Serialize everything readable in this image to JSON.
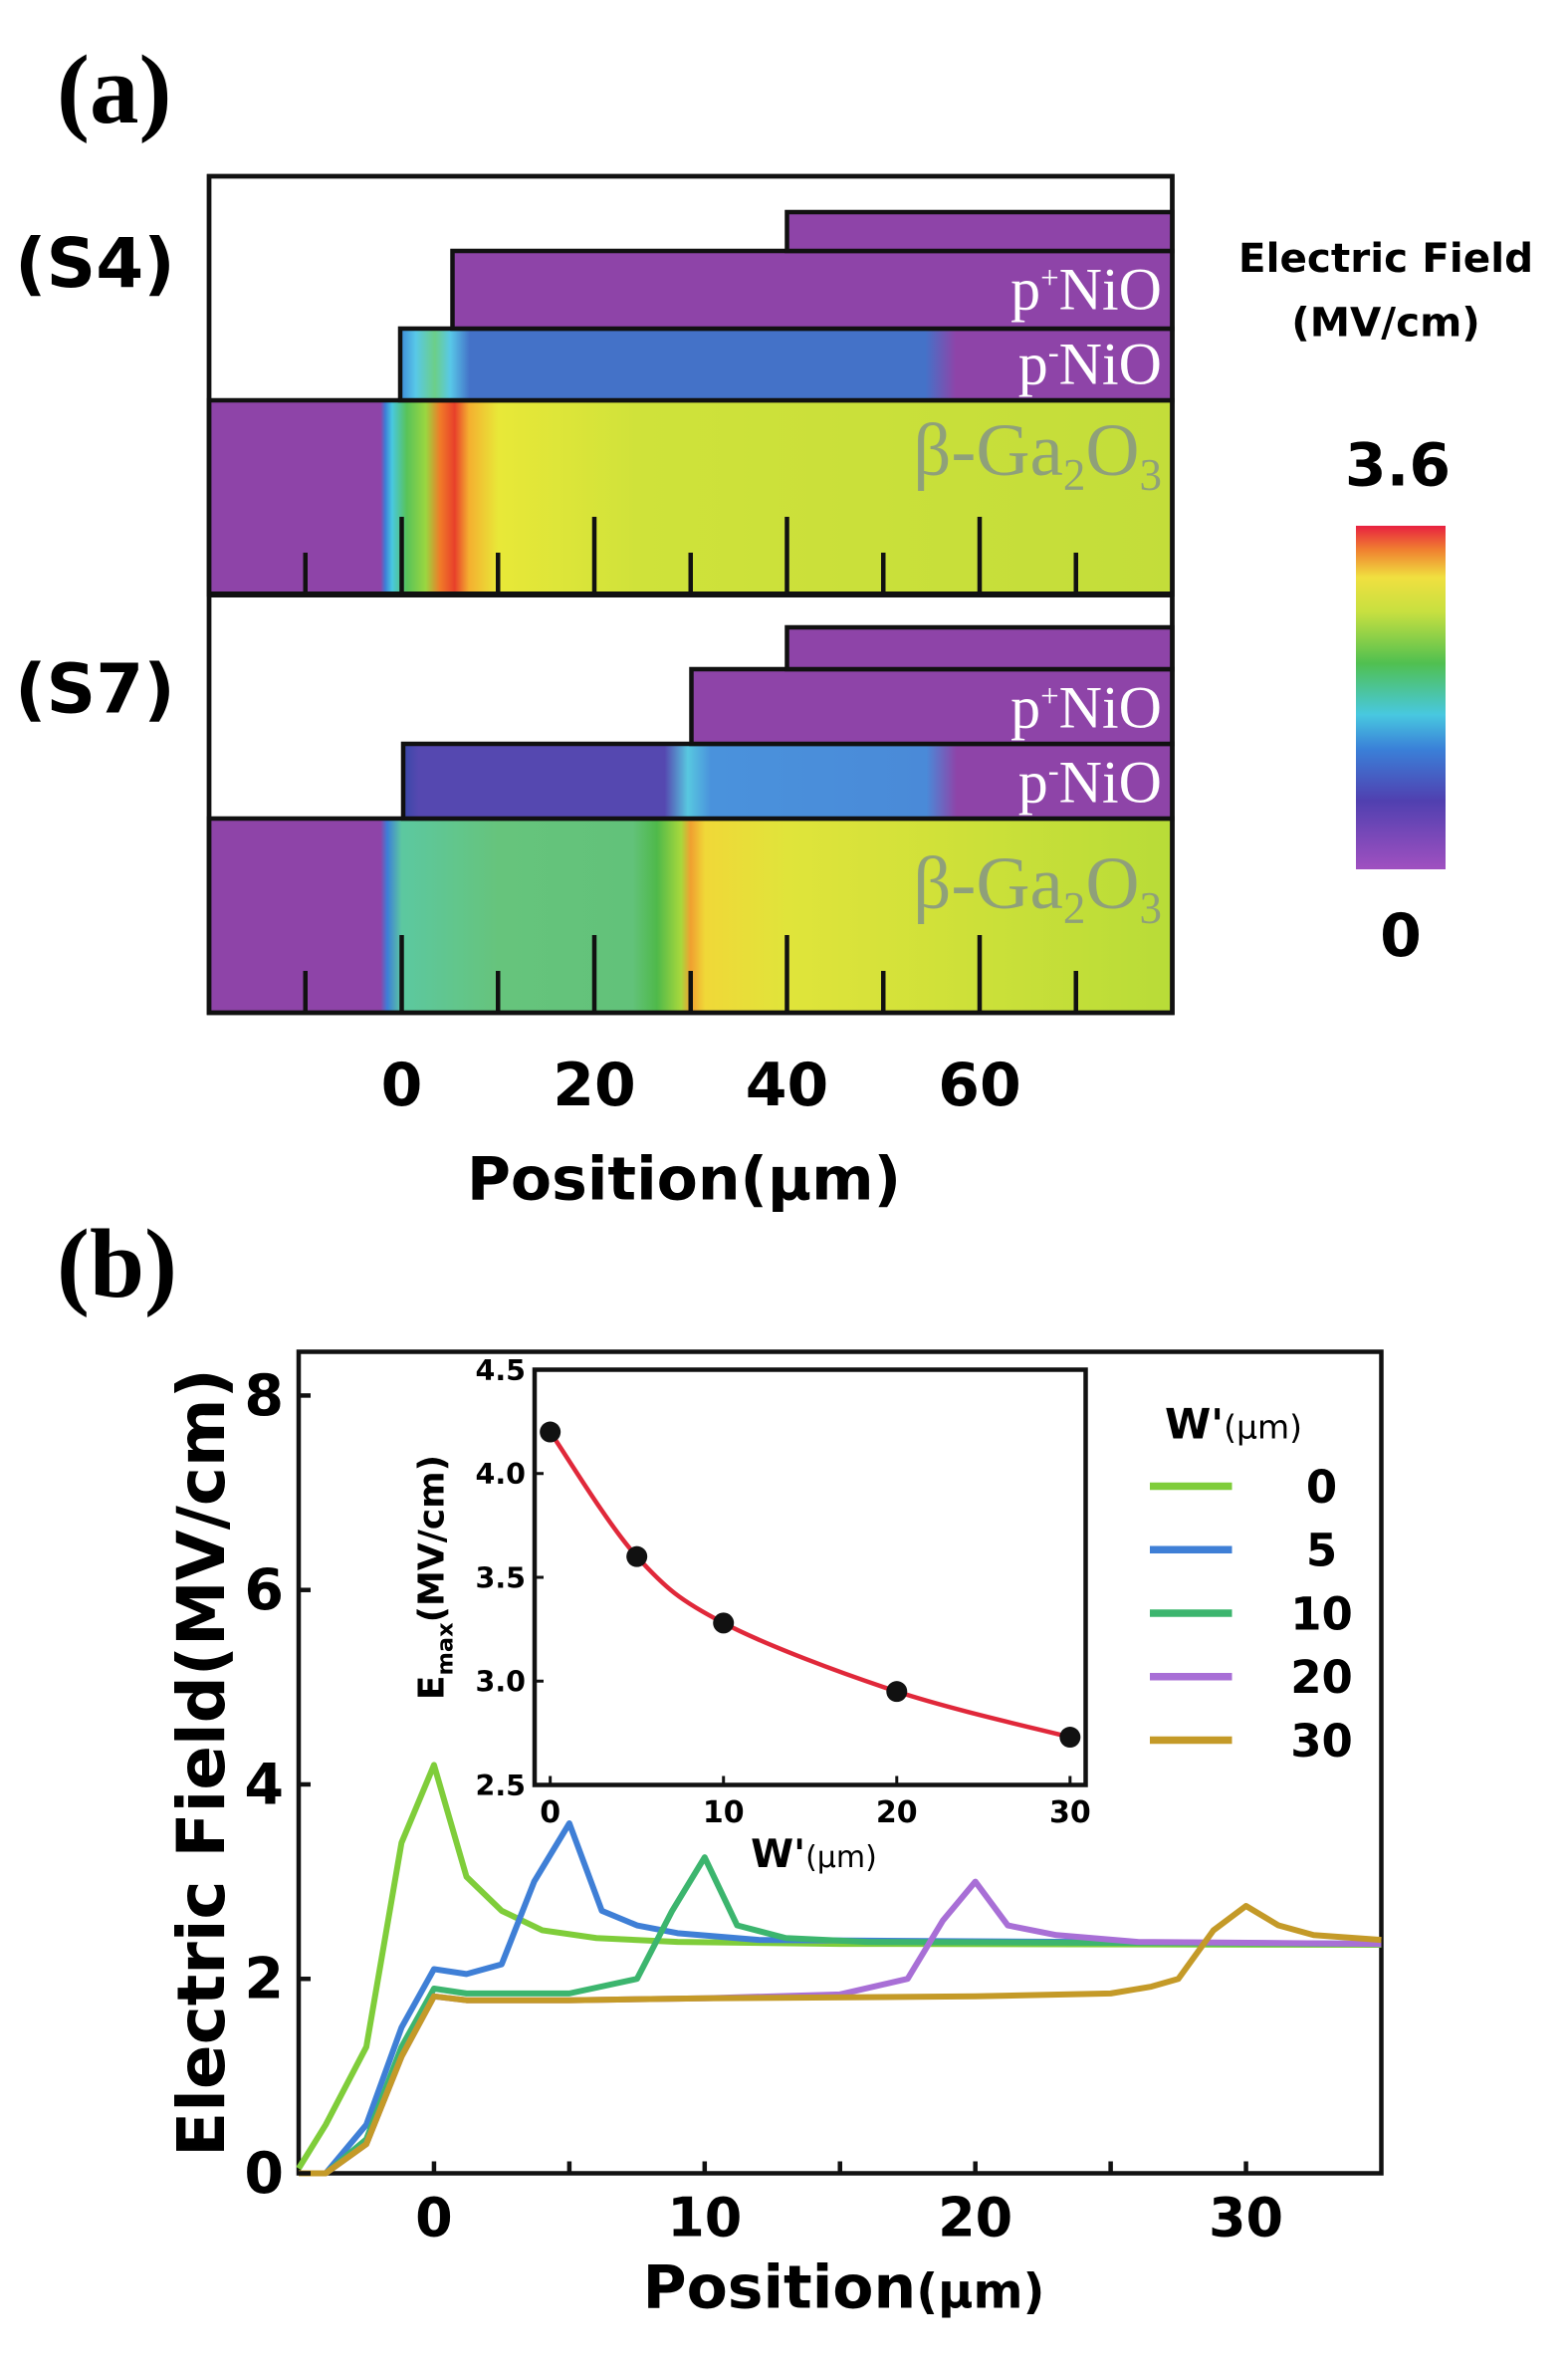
{
  "panel_labels": {
    "a": "(a)",
    "b": "(b)"
  },
  "chart_data": [
    {
      "type": "heatmap",
      "structures": [
        {
          "label": "(S4)",
          "p_plus_start": 5,
          "top_start": 40,
          "p_minus_start": 0,
          "peak_position": 5
        },
        {
          "label": "(S7)",
          "p_plus_start": 30,
          "top_start": 40,
          "p_minus_start": 0,
          "peak_position": 30
        }
      ],
      "layer_labels": {
        "p_plus": {
          "p": "p",
          "sup": "+",
          "rest": "NiO"
        },
        "p_minus": {
          "p": "p",
          "sup": "-",
          "rest": "NiO"
        },
        "substrate": {
          "a": "β-Ga",
          "s1": "2",
          "b": "O",
          "s2": "3"
        }
      },
      "xlabel": "Position(μm)",
      "xlim": [
        -20,
        80
      ],
      "xticks": [
        0,
        20,
        40,
        60
      ],
      "xtick_labels": [
        "0",
        "20",
        "40",
        "60"
      ],
      "colorbar": {
        "title_line1": "Electric Field",
        "title_line2": "(MV/cm)",
        "max_label": "3.6",
        "min_label": "0",
        "min": 0,
        "max": 3.6
      },
      "colors": {
        "purple": "#8e44a8",
        "background_field": "#c3dd3a"
      }
    },
    {
      "type": "line",
      "xlabel": {
        "main": "Position",
        "unit": "(μm)"
      },
      "ylabel": "Electric Field(MV/cm)",
      "xlim": [
        -5,
        35
      ],
      "ylim": [
        0,
        8.45
      ],
      "xticks": [
        0,
        10,
        20,
        30
      ],
      "yticks": [
        0,
        2,
        4,
        6,
        8
      ],
      "legend": {
        "title_main": "W'",
        "title_unit": "(μm)",
        "placement": "top-right"
      },
      "series": [
        {
          "name": "0",
          "color": "#7fcd3a",
          "points": [
            [
              -5,
              0.05
            ],
            [
              -4,
              0.5
            ],
            [
              -2.5,
              1.3
            ],
            [
              -1.2,
              3.4
            ],
            [
              0,
              4.2
            ],
            [
              1.2,
              3.05
            ],
            [
              2.5,
              2.7
            ],
            [
              4,
              2.5
            ],
            [
              6,
              2.42
            ],
            [
              9,
              2.38
            ],
            [
              15,
              2.36
            ],
            [
              35,
              2.35
            ]
          ]
        },
        {
          "name": "5",
          "color": "#3f7fd6",
          "points": [
            [
              -5,
              0
            ],
            [
              -4,
              0
            ],
            [
              -2.5,
              0.5
            ],
            [
              -1.2,
              1.5
            ],
            [
              0,
              2.1
            ],
            [
              1.2,
              2.05
            ],
            [
              2.5,
              2.15
            ],
            [
              3.7,
              3.0
            ],
            [
              5,
              3.6
            ],
            [
              6.2,
              2.7
            ],
            [
              7.5,
              2.55
            ],
            [
              9,
              2.47
            ],
            [
              12,
              2.4
            ],
            [
              35,
              2.36
            ]
          ]
        },
        {
          "name": "10",
          "color": "#3cb56e",
          "points": [
            [
              -5,
              0
            ],
            [
              -4,
              0
            ],
            [
              -2.5,
              0.35
            ],
            [
              -1.2,
              1.3
            ],
            [
              0,
              1.9
            ],
            [
              1.2,
              1.85
            ],
            [
              5,
              1.85
            ],
            [
              7.5,
              2.0
            ],
            [
              8.8,
              2.7
            ],
            [
              10,
              3.25
            ],
            [
              11.2,
              2.55
            ],
            [
              13,
              2.42
            ],
            [
              16,
              2.38
            ],
            [
              35,
              2.36
            ]
          ]
        },
        {
          "name": "20",
          "color": "#a86fd6",
          "points": [
            [
              -5,
              0
            ],
            [
              -4,
              0
            ],
            [
              -2.5,
              0.3
            ],
            [
              -1.2,
              1.2
            ],
            [
              0,
              1.82
            ],
            [
              1.2,
              1.78
            ],
            [
              5,
              1.78
            ],
            [
              10,
              1.8
            ],
            [
              15,
              1.84
            ],
            [
              17.5,
              2.0
            ],
            [
              18.8,
              2.6
            ],
            [
              20,
              3.0
            ],
            [
              21.2,
              2.55
            ],
            [
              23,
              2.45
            ],
            [
              26,
              2.38
            ],
            [
              35,
              2.36
            ]
          ]
        },
        {
          "name": "30",
          "color": "#c49a28",
          "points": [
            [
              -5,
              0
            ],
            [
              -4,
              0
            ],
            [
              -2.5,
              0.3
            ],
            [
              -1.2,
              1.2
            ],
            [
              0,
              1.82
            ],
            [
              1.2,
              1.78
            ],
            [
              5,
              1.78
            ],
            [
              10,
              1.8
            ],
            [
              20,
              1.82
            ],
            [
              25,
              1.85
            ],
            [
              26.5,
              1.92
            ],
            [
              27.5,
              2.0
            ],
            [
              28.8,
              2.5
            ],
            [
              30,
              2.75
            ],
            [
              31.2,
              2.55
            ],
            [
              32.5,
              2.45
            ],
            [
              35,
              2.4
            ]
          ]
        }
      ],
      "inset": {
        "type": "line+scatter",
        "xlabel": {
          "main": "W'",
          "unit": "(μm)"
        },
        "ylabel": {
          "main": "E",
          "sub": "max",
          "unit": "(MV/cm)"
        },
        "xlim": [
          -0.9,
          30.9
        ],
        "ylim": [
          2.5,
          4.5
        ],
        "xticks": [
          0,
          10,
          20,
          30
        ],
        "yticks": [
          2.5,
          3.0,
          3.5,
          4.0,
          4.5
        ],
        "ytick_labels": [
          "2.5",
          "3.0",
          "3.5",
          "4.0",
          "4.5"
        ],
        "line_color": "#e0283a",
        "x": [
          0,
          5,
          10,
          20,
          30
        ],
        "y": [
          4.2,
          3.6,
          3.28,
          2.95,
          2.73
        ]
      }
    }
  ]
}
